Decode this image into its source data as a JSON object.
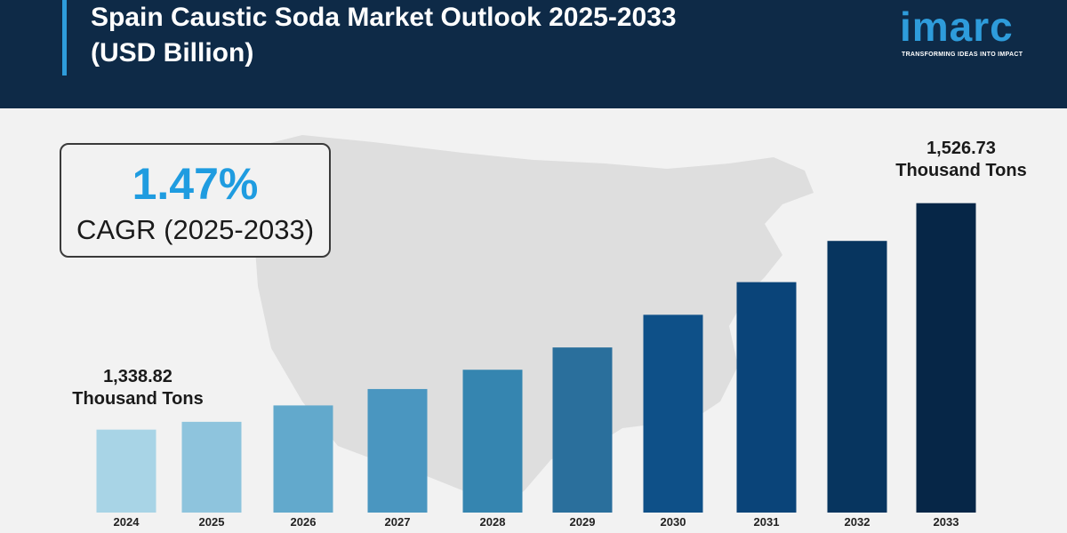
{
  "header": {
    "title": "Spain Caustic Soda Market Outlook 2025-2033 (USD Billion)",
    "logo_text": "imarc",
    "logo_tagline": "TRANSFORMING IDEAS INTO IMPACT"
  },
  "cagr": {
    "value": "1.47%",
    "label": "CAGR (2025-2033)"
  },
  "chart_data": {
    "type": "bar",
    "title": "Spain Caustic Soda Market Outlook 2025-2033 (USD Billion)",
    "categories": [
      "2024",
      "2025",
      "2026",
      "2027",
      "2028",
      "2029",
      "2030",
      "2031",
      "2032",
      "2033"
    ],
    "values": [
      1338.82,
      1345.3,
      1358.9,
      1372.5,
      1388.5,
      1407.0,
      1434.1,
      1461.2,
      1495.4,
      1526.73
    ],
    "ylim": [
      1270,
      1570
    ],
    "grid": false,
    "legend": "none",
    "bar_colors": [
      "#a8d4e6",
      "#8ec4dd",
      "#62a9cc",
      "#4a96c0",
      "#3585b0",
      "#2a6f9c",
      "#0e5088",
      "#0a4479",
      "#07355f",
      "#062647"
    ],
    "annotations": [
      {
        "category": "2024",
        "value": "1,338.82",
        "unit": "Thousand Tons"
      },
      {
        "category": "2033",
        "value": "1,526.73",
        "unit": "Thousand Tons"
      }
    ]
  },
  "colors": {
    "header_bg": "#0e2a47",
    "accent": "#2e9cdb",
    "cagr_value": "#1f9ce0",
    "background": "#f2f2f2"
  }
}
